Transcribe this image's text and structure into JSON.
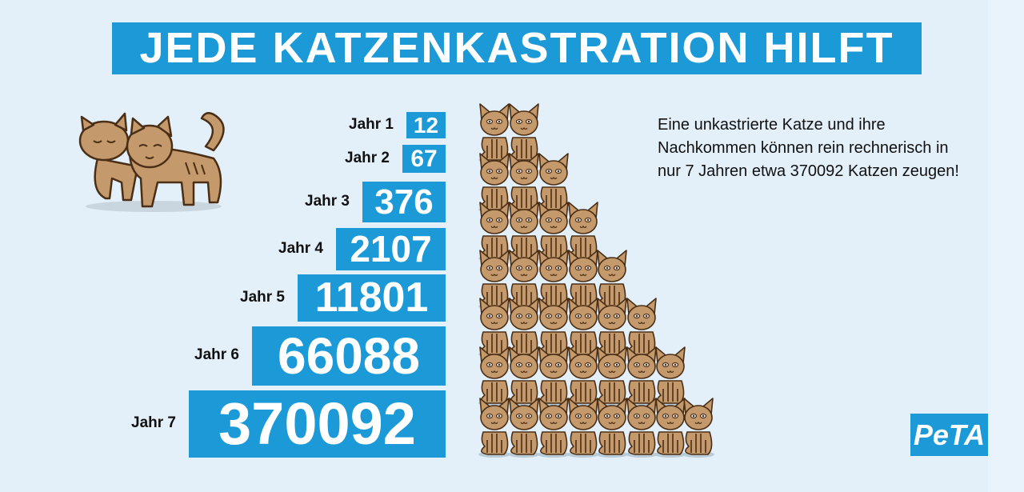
{
  "title": "JEDE KATZENKASTRATION HILFT",
  "years": [
    {
      "label": "Jahr 1",
      "value": "12"
    },
    {
      "label": "Jahr 2",
      "value": "67"
    },
    {
      "label": "Jahr 3",
      "value": "376"
    },
    {
      "label": "Jahr 4",
      "value": "2107"
    },
    {
      "label": "Jahr 5",
      "value": "11801"
    },
    {
      "label": "Jahr 6",
      "value": "66088"
    },
    {
      "label": "Jahr 7",
      "value": "370092"
    }
  ],
  "description": "Eine unkastrierte Katze und ihre Nachkommen können rein rechnerisch in nur 7 Jahren etwa 370092 Katzen zeugen!",
  "pyramid_cats_per_row": [
    2,
    3,
    4,
    5,
    6,
    7,
    8
  ],
  "logo": "PeTA",
  "colors": {
    "accent": "#1b9ad7",
    "background": "#e3f0f9",
    "cat": "#c49a6c",
    "cat_outline": "#4a2e16"
  }
}
